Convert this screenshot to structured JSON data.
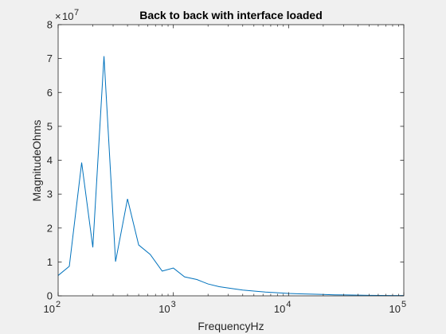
{
  "chart_data": {
    "type": "line",
    "title": "Back to back with interface loaded",
    "xlabel": "FrequencyHz",
    "ylabel": "MagnitudeOhms",
    "xscale": "log",
    "xlim": [
      100,
      100000
    ],
    "ylim": [
      0,
      8
    ],
    "y_multiplier": "×10^7",
    "y_multiplier_base": "10",
    "y_multiplier_exp": "7",
    "x_ticks": [
      {
        "value": 100,
        "base": "10",
        "exp": "2"
      },
      {
        "value": 1000,
        "base": "10",
        "exp": "3"
      },
      {
        "value": 10000,
        "base": "10",
        "exp": "4"
      },
      {
        "value": 100000,
        "base": "10",
        "exp": "5"
      }
    ],
    "y_ticks": [
      0,
      1,
      2,
      3,
      4,
      5,
      6,
      7,
      8
    ],
    "grid": false,
    "line_color": "#0072bd",
    "series": [
      {
        "x": [
          100,
          125,
          160,
          200,
          250,
          315,
          400,
          500,
          630,
          800,
          1000,
          1250,
          1600,
          2000,
          2500,
          3150,
          4000,
          5000,
          6300,
          8000,
          10000,
          12500,
          16000,
          20000,
          25000,
          31500,
          40000,
          50000,
          63000,
          80000,
          100000
        ],
        "y": [
          0.6,
          0.87,
          3.93,
          1.43,
          7.07,
          1.01,
          2.86,
          1.5,
          1.22,
          0.73,
          0.82,
          0.56,
          0.48,
          0.35,
          0.27,
          0.22,
          0.17,
          0.14,
          0.11,
          0.09,
          0.07,
          0.06,
          0.05,
          0.04,
          0.03,
          0.025,
          0.02,
          0.015,
          0.012,
          0.01,
          0.008
        ]
      }
    ]
  }
}
